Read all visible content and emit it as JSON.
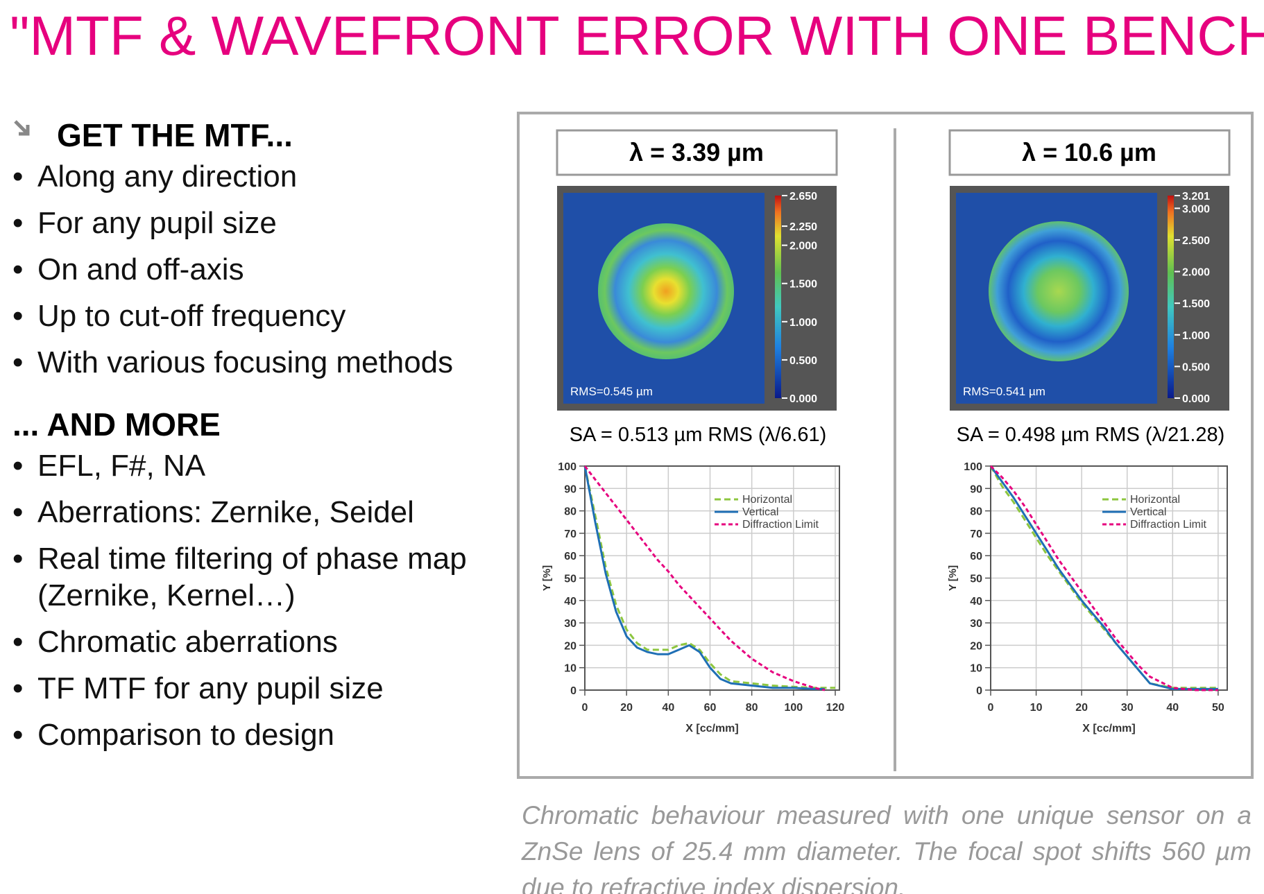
{
  "title": "\"MTF & WAVEFRONT ERROR WITH ONE BENCH\"",
  "sections": [
    {
      "heading": "GET THE MTF...",
      "items": [
        "Along any direction",
        "For any pupil size",
        "On and off-axis",
        "Up to cut-off frequency",
        "With various focusing methods"
      ]
    },
    {
      "heading": "... AND MORE",
      "items": [
        "EFL, F#, NA",
        "Aberrations: Zernike, Seidel",
        "Real time filtering of phase map (Zernike, Kernel…)",
        "Chromatic aberrations",
        "TF MTF for any pupil size",
        "Comparison to design"
      ]
    }
  ],
  "panels": [
    {
      "wavelength": "λ = 3.39 µm",
      "rms": "RMS=0.545 µm",
      "sa": "SA = 0.513 µm RMS (λ/6.61)",
      "colorbar": {
        "range": [
          0,
          2.65
        ],
        "ticks": [
          {
            "value": 2.65,
            "label": "2.650"
          },
          {
            "value": 2.25,
            "label": "2.250"
          },
          {
            "value": 2,
            "label": "2.000"
          },
          {
            "value": 1.5,
            "label": "1.500"
          },
          {
            "value": 1,
            "label": "1.000"
          },
          {
            "value": 0.5,
            "label": "0.500"
          },
          {
            "value": 0,
            "label": "0.000"
          }
        ]
      }
    },
    {
      "wavelength": "λ = 10.6 µm",
      "rms": "RMS=0.541 µm",
      "sa": "SA = 0.498 µm RMS (λ/21.28)",
      "colorbar": {
        "range": [
          0,
          3.201
        ],
        "ticks": [
          {
            "value": 3.201,
            "label": "3.201"
          },
          {
            "value": 3,
            "label": "3.000"
          },
          {
            "value": 2.5,
            "label": "2.500"
          },
          {
            "value": 2,
            "label": "2.000"
          },
          {
            "value": 1.5,
            "label": "1.500"
          },
          {
            "value": 1,
            "label": "1.000"
          },
          {
            "value": 0.5,
            "label": "0.500"
          },
          {
            "value": 0,
            "label": "0.000"
          }
        ]
      }
    }
  ],
  "chart_data": [
    {
      "type": "line",
      "xlabel": "X [cc/mm]",
      "ylabel": "Y [%]",
      "x": [
        0,
        5,
        10,
        15,
        20,
        25,
        30,
        35,
        40,
        45,
        50,
        55,
        60,
        65,
        70,
        80,
        90,
        100,
        110,
        115,
        120
      ],
      "series": [
        {
          "name": "Horizontal",
          "color": "#8dc63f",
          "linestyle": "dashed",
          "values": [
            100,
            78,
            55,
            38,
            27,
            21,
            18,
            18,
            18,
            20,
            21,
            18,
            12,
            7,
            4,
            3,
            2,
            1.5,
            1,
            1,
            1
          ]
        },
        {
          "name": "Vertical",
          "color": "#1f6fb5",
          "linestyle": "solid",
          "values": [
            100,
            75,
            52,
            35,
            24,
            19,
            17,
            16,
            16,
            18,
            20,
            17,
            10,
            5,
            3,
            2,
            1,
            1,
            0.5,
            0.5,
            null
          ]
        },
        {
          "name": "Diffraction Limit",
          "color": "#e6007e",
          "linestyle": "dotted",
          "values": [
            100,
            94,
            88,
            82,
            76,
            70,
            64,
            58,
            53,
            47,
            42,
            37,
            32,
            27,
            22,
            14,
            8,
            4,
            1,
            0,
            null
          ]
        }
      ],
      "xlim": [
        0,
        122
      ],
      "ylim": [
        0,
        100
      ],
      "xticks": [
        0,
        20,
        40,
        60,
        80,
        100,
        120
      ],
      "yticks": [
        0,
        10,
        20,
        30,
        40,
        50,
        60,
        70,
        80,
        90,
        100
      ],
      "grid": true,
      "legend": "upper right"
    },
    {
      "type": "line",
      "xlabel": "X [cc/mm]",
      "ylabel": "Y [%]",
      "x": [
        0,
        2.5,
        5,
        7.5,
        10,
        12.5,
        15,
        17.5,
        20,
        22.5,
        25,
        27.5,
        30,
        32.5,
        35,
        40,
        45,
        50
      ],
      "series": [
        {
          "name": "Horizontal",
          "color": "#8dc63f",
          "linestyle": "dashed",
          "values": [
            100,
            91,
            84,
            76,
            68,
            60,
            53,
            46,
            39,
            33,
            27,
            21,
            15,
            9,
            3,
            1,
            1,
            1
          ]
        },
        {
          "name": "Vertical",
          "color": "#1f6fb5",
          "linestyle": "solid",
          "values": [
            100,
            93,
            86,
            78,
            70,
            62,
            54,
            47,
            40,
            34,
            28,
            21,
            15,
            9,
            3,
            0.5,
            0.5,
            0.5
          ]
        },
        {
          "name": "Diffraction Limit",
          "color": "#e6007e",
          "linestyle": "dotted",
          "values": [
            100,
            95,
            89,
            82,
            74,
            66,
            58,
            51,
            44,
            37,
            30,
            23,
            17,
            11,
            6,
            1,
            0,
            0
          ]
        }
      ],
      "xlim": [
        0,
        52
      ],
      "ylim": [
        0,
        100
      ],
      "xticks": [
        0,
        10,
        20,
        30,
        40,
        50
      ],
      "yticks": [
        0,
        10,
        20,
        30,
        40,
        50,
        60,
        70,
        80,
        90,
        100
      ],
      "grid": true,
      "legend": "upper right"
    }
  ],
  "caption": "Chromatic behaviour measured with one unique sensor on a ZnSe lens of 25.4 mm diameter. The focal spot shifts 560 µm due to refractive index dispersion."
}
